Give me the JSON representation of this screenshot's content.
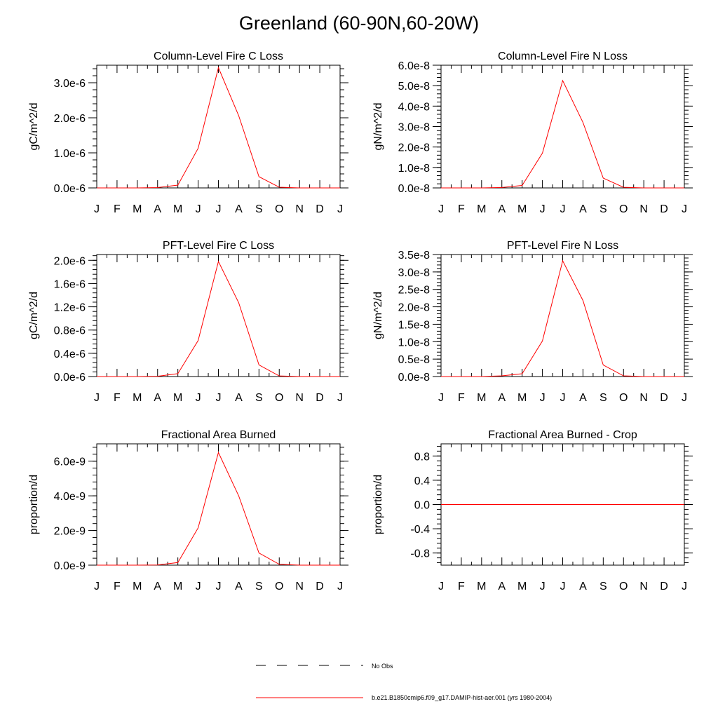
{
  "page_title": "Greenland (60-90N,60-20W)",
  "colors": {
    "model_line": "#ff0000",
    "obs_line": "#000000",
    "axis": "#000000"
  },
  "legend": [
    {
      "label": "No Obs",
      "style": "dashed",
      "color": "#000000"
    },
    {
      "label": "b.e21.B1850cmip6.f09_g17.DAMIP-hist-aer.001 (yrs 1980-2004)",
      "style": "solid",
      "color": "#ff0000"
    }
  ],
  "chart_data": [
    {
      "type": "line",
      "title": "Column-Level Fire C Loss",
      "ylabel": "gC/m^2/d",
      "xlabel": "",
      "categories": [
        "J",
        "F",
        "M",
        "A",
        "M",
        "J",
        "J",
        "A",
        "S",
        "O",
        "N",
        "D",
        "J"
      ],
      "ylim": [
        0,
        3.5e-06
      ],
      "yticks": [
        0,
        1e-06,
        2e-06,
        3e-06
      ],
      "ytick_labels": [
        "0.0e-6",
        "1.0e-6",
        "2.0e-6",
        "3.0e-6"
      ],
      "series": [
        {
          "values": [
            0,
            0,
            0,
            1e-08,
            8e-08,
            1.13e-06,
            3.43e-06,
            2.06e-06,
            3.2e-07,
            2e-08,
            0,
            0,
            0
          ]
        }
      ],
      "grid": false
    },
    {
      "type": "line",
      "title": "Column-Level Fire N Loss",
      "ylabel": "gN/m^2/d",
      "xlabel": "",
      "categories": [
        "J",
        "F",
        "M",
        "A",
        "M",
        "J",
        "J",
        "A",
        "S",
        "O",
        "N",
        "D",
        "J"
      ],
      "ylim": [
        0,
        6e-08
      ],
      "yticks": [
        0,
        1e-08,
        2e-08,
        3e-08,
        4e-08,
        5e-08,
        6e-08
      ],
      "ytick_labels": [
        "0.0e-8",
        "1.0e-8",
        "2.0e-8",
        "3.0e-8",
        "4.0e-8",
        "5.0e-8",
        "6.0e-8"
      ],
      "series": [
        {
          "values": [
            0,
            0,
            0,
            2e-10,
            1.2e-09,
            1.7e-08,
            5.25e-08,
            3.2e-08,
            4.8e-09,
            3e-10,
            0,
            0,
            0
          ]
        }
      ],
      "grid": false
    },
    {
      "type": "line",
      "title": "PFT-Level Fire C Loss",
      "ylabel": "gC/m^2/d",
      "xlabel": "",
      "categories": [
        "J",
        "F",
        "M",
        "A",
        "M",
        "J",
        "J",
        "A",
        "S",
        "O",
        "N",
        "D",
        "J"
      ],
      "ylim": [
        0,
        2.1e-06
      ],
      "yticks": [
        0,
        4e-07,
        8e-07,
        1.2e-06,
        1.6e-06,
        2e-06
      ],
      "ytick_labels": [
        "0.0e-6",
        "0.4e-6",
        "0.8e-6",
        "1.2e-6",
        "1.6e-6",
        "2.0e-6"
      ],
      "series": [
        {
          "values": [
            0,
            0,
            0,
            5e-09,
            5e-08,
            6.2e-07,
            1.98e-06,
            1.27e-06,
            2e-07,
            1e-08,
            0,
            0,
            0
          ]
        }
      ],
      "grid": false
    },
    {
      "type": "line",
      "title": "PFT-Level Fire N Loss",
      "ylabel": "gN/m^2/d",
      "xlabel": "",
      "categories": [
        "J",
        "F",
        "M",
        "A",
        "M",
        "J",
        "J",
        "A",
        "S",
        "O",
        "N",
        "D",
        "J"
      ],
      "ylim": [
        0,
        3.5e-08
      ],
      "yticks": [
        0,
        5e-09,
        1e-08,
        1.5e-08,
        2e-08,
        2.5e-08,
        3e-08,
        3.5e-08
      ],
      "ytick_labels": [
        "0.0e-8",
        "0.5e-8",
        "1.0e-8",
        "1.5e-8",
        "2.0e-8",
        "2.5e-8",
        "3.0e-8",
        "3.5e-8"
      ],
      "series": [
        {
          "values": [
            0,
            0,
            0,
            2e-10,
            8e-10,
            1.02e-08,
            3.32e-08,
            2.18e-08,
            3.3e-09,
            2e-10,
            0,
            0,
            0
          ]
        }
      ],
      "grid": false
    },
    {
      "type": "line",
      "title": "Fractional Area Burned",
      "ylabel": "proportion/d",
      "xlabel": "",
      "categories": [
        "J",
        "F",
        "M",
        "A",
        "M",
        "J",
        "J",
        "A",
        "S",
        "O",
        "N",
        "D",
        "J"
      ],
      "ylim": [
        0,
        7e-09
      ],
      "yticks": [
        0,
        2e-09,
        4e-09,
        6e-09
      ],
      "ytick_labels": [
        "0.0e-9",
        "2.0e-9",
        "4.0e-9",
        "6.0e-9"
      ],
      "series": [
        {
          "values": [
            0,
            0,
            0,
            1e-11,
            1.5e-10,
            2.15e-09,
            6.5e-09,
            4e-09,
            7e-10,
            5e-11,
            0,
            0,
            0
          ]
        }
      ],
      "grid": false
    },
    {
      "type": "line",
      "title": "Fractional Area Burned - Crop",
      "ylabel": "proportion/d",
      "xlabel": "",
      "categories": [
        "J",
        "F",
        "M",
        "A",
        "M",
        "J",
        "J",
        "A",
        "S",
        "O",
        "N",
        "D",
        "J"
      ],
      "ylim": [
        -1.0,
        1.0
      ],
      "yticks": [
        -0.8,
        -0.4,
        0.0,
        0.4,
        0.8
      ],
      "ytick_labels": [
        "-0.8",
        "-0.4",
        "0.0",
        "0.4",
        "0.8"
      ],
      "series": [
        {
          "values": [
            0,
            0,
            0,
            0,
            0,
            0,
            0,
            0,
            0,
            0,
            0,
            0,
            0
          ]
        }
      ],
      "grid": false
    }
  ]
}
